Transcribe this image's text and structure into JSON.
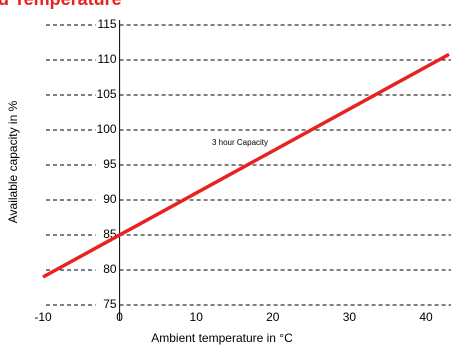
{
  "chart_data": {
    "type": "line",
    "title": "d Temperature",
    "x_label": "Ambient temperature in °C",
    "y_label": "Available capacity in %",
    "annotation": "3 hour Capacity",
    "series": [
      {
        "name": "3 hour Capacity",
        "color": "#e8231f",
        "x": [
          -10,
          43
        ],
        "values": [
          79,
          110.8
        ]
      }
    ],
    "xlim": [
      -10,
      43
    ],
    "xticks": [
      -10,
      0,
      10,
      20,
      30,
      40
    ],
    "ylim": [
      75,
      115
    ],
    "yticks": [
      75,
      80,
      85,
      90,
      95,
      100,
      105,
      110,
      115
    ],
    "grid": true
  }
}
